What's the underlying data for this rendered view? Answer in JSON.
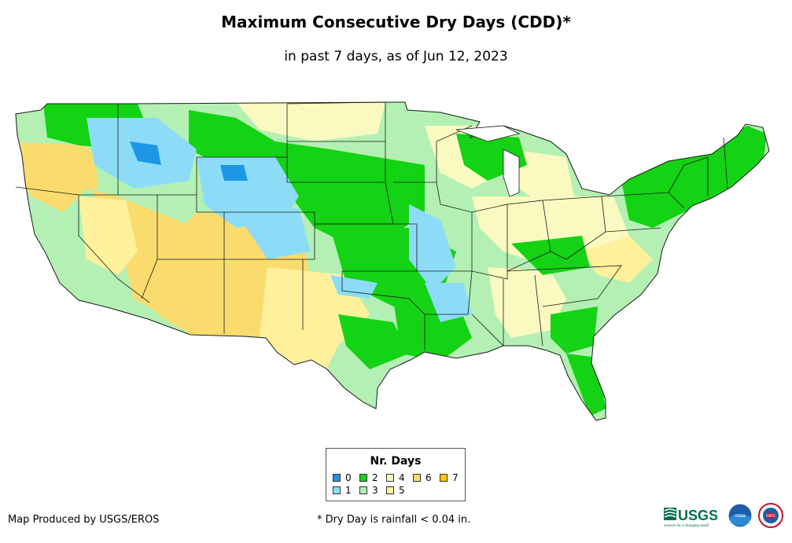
{
  "title": "Maximum Consecutive Dry Days (CDD)*",
  "subtitle": "in past 7 days, as of Jun 12, 2023",
  "legend": {
    "title": "Nr. Days",
    "items": [
      {
        "label": "0",
        "color": "#1e96e6"
      },
      {
        "label": "1",
        "color": "#8cdcf8"
      },
      {
        "label": "2",
        "color": "#14d214"
      },
      {
        "label": "3",
        "color": "#b4f0b4"
      },
      {
        "label": "4",
        "color": "#fafac0"
      },
      {
        "label": "5",
        "color": "#fff09c"
      },
      {
        "label": "6",
        "color": "#fadc6e"
      },
      {
        "label": "7",
        "color": "#ffc800"
      }
    ]
  },
  "credit": "Map Produced by USGS/EROS",
  "footnote": "* Dry Day is rainfall < 0.04 in.",
  "logos": {
    "usgs_text": "USGS",
    "usgs_tagline": "science for a changing world",
    "noaa_text": "noaa",
    "nws_text": "NWS"
  }
}
